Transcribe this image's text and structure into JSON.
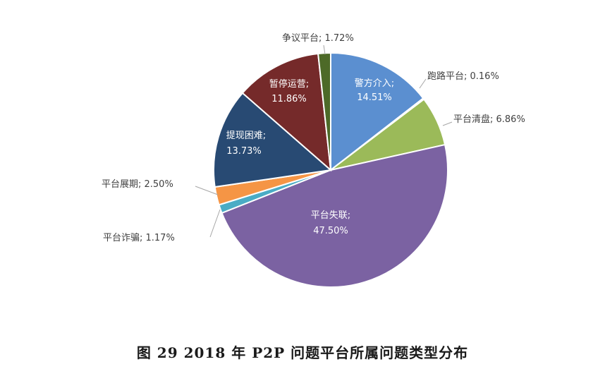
{
  "caption": "图 29   2018 年 P2P 问题平台所属问题类型分布",
  "chart_data": {
    "type": "pie",
    "title": "",
    "slices": [
      {
        "name": "警方介入",
        "value": 14.51,
        "label": "警方介入;",
        "value_label": "14.51%",
        "color": "#5b8fd0",
        "inside": true
      },
      {
        "name": "跑路平台",
        "value": 0.16,
        "label": "跑路平台; 0.16%",
        "color": "#b04a45",
        "inside": false
      },
      {
        "name": "平台清盘",
        "value": 6.86,
        "label": "平台清盘; 6.86%",
        "color": "#9bba59",
        "inside": false
      },
      {
        "name": "平台失联",
        "value": 47.5,
        "label": "平台失联;",
        "value_label": "47.50%",
        "color": "#7b62a2",
        "inside": true
      },
      {
        "name": "平台诈骗",
        "value": 1.17,
        "label": "平台诈骗; 1.17%",
        "color": "#4aacc5",
        "inside": false
      },
      {
        "name": "平台展期",
        "value": 2.5,
        "label": "平台展期; 2.50%",
        "color": "#f59545",
        "inside": false
      },
      {
        "name": "提现困难",
        "value": 13.73,
        "label": "提现困难;",
        "value_label": "13.73%",
        "color": "#284a73",
        "inside": true
      },
      {
        "name": "暂停运营",
        "value": 11.86,
        "label": "暂停运营;",
        "value_label": "11.86%",
        "color": "#752a2a",
        "inside": true
      },
      {
        "name": "争议平台",
        "value": 1.72,
        "label": "争议平台; 1.72%",
        "color": "#4d6a28",
        "inside": false
      }
    ]
  }
}
